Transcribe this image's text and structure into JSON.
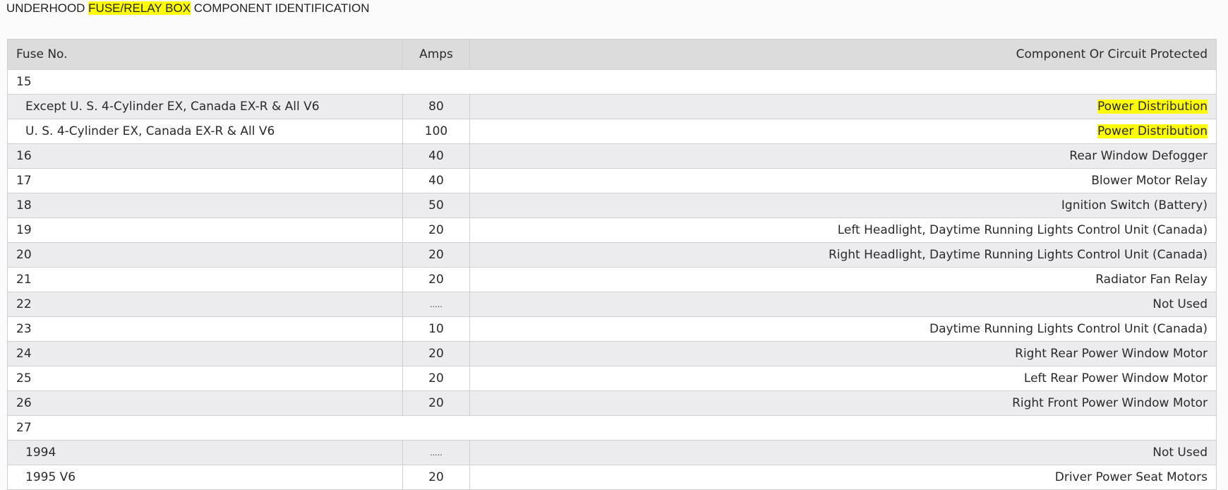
{
  "title": {
    "before": "UNDERHOOD ",
    "highlight": "FUSE/RELAY BOX",
    "after": " COMPONENT IDENTIFICATION"
  },
  "highlight_color": "#ffff00",
  "headers": {
    "fuse": "Fuse No.",
    "amps": "Amps",
    "component": "Component Or Circuit Protected"
  },
  "rows": [
    {
      "fuse": "15",
      "group": true
    },
    {
      "fuse": "Except U. S. 4-Cylinder EX, Canada EX-R & All V6",
      "amps": "80",
      "component": "Power Distribution",
      "sub": true,
      "highlight": true
    },
    {
      "fuse": "U. S. 4-Cylinder EX, Canada EX-R & All V6",
      "amps": "100",
      "component": "Power Distribution",
      "sub": true,
      "highlight": true
    },
    {
      "fuse": "16",
      "amps": "40",
      "component": "Rear Window Defogger"
    },
    {
      "fuse": "17",
      "amps": "40",
      "component": "Blower Motor Relay"
    },
    {
      "fuse": "18",
      "amps": "50",
      "component": "Ignition Switch (Battery)"
    },
    {
      "fuse": "19",
      "amps": "20",
      "component": "Left Headlight, Daytime Running Lights Control Unit (Canada)"
    },
    {
      "fuse": "20",
      "amps": "20",
      "component": "Right Headlight, Daytime Running Lights Control Unit (Canada)"
    },
    {
      "fuse": "21",
      "amps": "20",
      "component": "Radiator Fan Relay"
    },
    {
      "fuse": "22",
      "amps": ".....",
      "component": "Not Used"
    },
    {
      "fuse": "23",
      "amps": "10",
      "component": "Daytime Running Lights Control Unit (Canada)"
    },
    {
      "fuse": "24",
      "amps": "20",
      "component": "Right Rear Power Window Motor"
    },
    {
      "fuse": "25",
      "amps": "20",
      "component": "Left Rear Power Window Motor"
    },
    {
      "fuse": "26",
      "amps": "20",
      "component": "Right Front Power Window Motor"
    },
    {
      "fuse": "27",
      "group": true
    },
    {
      "fuse": "1994",
      "amps": ".....",
      "component": "Not Used",
      "sub": true
    },
    {
      "fuse": "1995 V6",
      "amps": "20",
      "component": "Driver Power Seat Motors",
      "sub": true
    }
  ]
}
